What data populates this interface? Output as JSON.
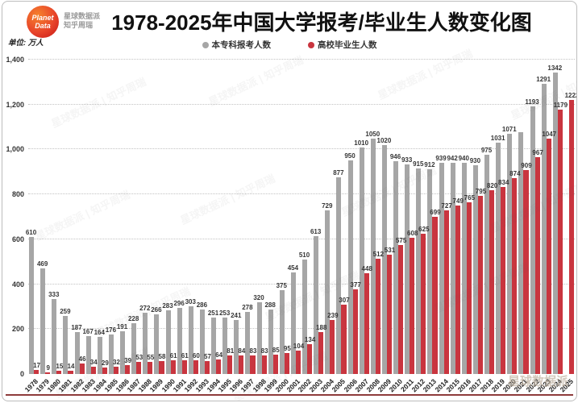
{
  "header": {
    "logo_line1": "Planet",
    "logo_line2": "Data",
    "brand_line1": "星球数据派",
    "brand_line2": "知乎周瑞",
    "title": "1978-2025年中国大学报考/毕业生人数变化图"
  },
  "unit_label": "单位: 万人",
  "watermark_text": "星球数据派 | 知乎周瑞",
  "corner_watermark": "星球数据派",
  "chart_data": {
    "type": "bar",
    "title": "1978-2025年中国大学报考/毕业生人数变化图",
    "unit": "万人",
    "ylim": [
      0,
      1400
    ],
    "yticks": [
      0,
      200,
      400,
      600,
      800,
      1000,
      1200,
      1400
    ],
    "ytick_labels": [
      "0",
      "200",
      "400",
      "600",
      "800",
      "1,000",
      "1,200",
      "1,400"
    ],
    "grid": "dotted horizontal",
    "legend_position": "top center",
    "categories": [
      "1978",
      "1979",
      "1980",
      "1981",
      "1982",
      "1983",
      "1984",
      "1985",
      "1986",
      "1987",
      "1988",
      "1989",
      "1990",
      "1991",
      "1992",
      "1993",
      "1994",
      "1995",
      "1996",
      "1997",
      "1998",
      "1999",
      "2000",
      "2001",
      "2002",
      "2003",
      "2004",
      "2005",
      "2006",
      "2007",
      "2008",
      "2009",
      "2010",
      "2011",
      "2012",
      "2013",
      "2014",
      "2015",
      "2016",
      "2017",
      "2018",
      "2019",
      "2020",
      "2021",
      "2022",
      "2023",
      "2024",
      "2025"
    ],
    "series": [
      {
        "name": "本专科报考人数",
        "color": "#a6a6a6",
        "values": [
          610,
          469,
          333,
          259,
          187,
          167,
          164,
          176,
          191,
          228,
          272,
          266,
          283,
          296,
          303,
          286,
          251,
          253,
          241,
          278,
          320,
          288,
          375,
          454,
          510,
          613,
          729,
          877,
          950,
          1010,
          1050,
          1020,
          946,
          933,
          915,
          912,
          939,
          942,
          940,
          930,
          975,
          1031,
          1071,
          1078,
          1193,
          1291,
          1342,
          null
        ],
        "label_overrides": {
          "2021": ""
        }
      },
      {
        "name": "高校毕业生人数",
        "color": "#c9353f",
        "values": [
          17,
          9,
          15,
          14,
          46,
          34,
          29,
          32,
          39,
          53,
          55,
          58,
          61,
          61,
          60,
          57,
          64,
          81,
          84,
          83,
          83,
          85,
          95,
          104,
          134,
          188,
          239,
          307,
          377,
          448,
          512,
          531,
          575,
          608,
          625,
          699,
          727,
          749,
          765,
          795,
          820,
          834,
          874,
          909,
          967,
          1047,
          1179,
          1222
        ],
        "label_overrides": {}
      }
    ]
  }
}
